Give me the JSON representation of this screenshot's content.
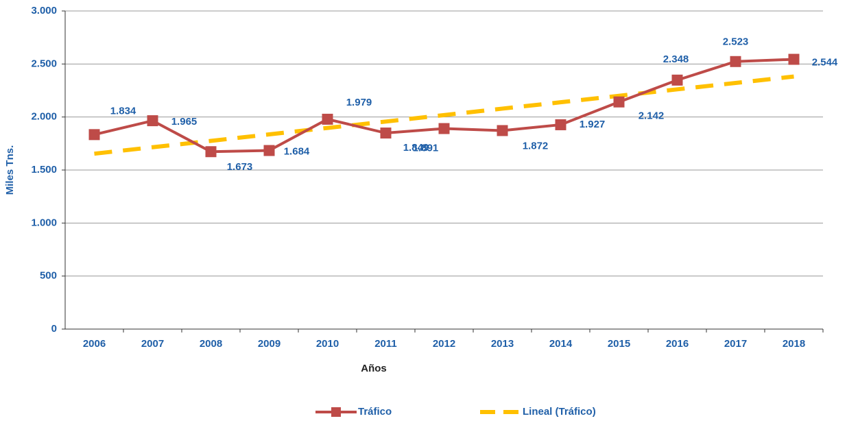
{
  "chart_data": {
    "type": "line",
    "x_label": "Años",
    "y_label": "Miles Tns.",
    "categories": [
      "2006",
      "2007",
      "2008",
      "2009",
      "2010",
      "2011",
      "2012",
      "2013",
      "2014",
      "2015",
      "2016",
      "2017",
      "2018"
    ],
    "series": [
      {
        "name": "Tráfico",
        "color": "#be4b48",
        "values": [
          1834,
          1965,
          1673,
          1684,
          1979,
          1849,
          1891,
          1872,
          1927,
          2142,
          2348,
          2523,
          2544
        ],
        "value_labels": [
          "1.834",
          "1.965",
          "1.673",
          "1.684",
          "1.979",
          "1.849",
          "1.891",
          "1.872",
          "1.927",
          "2.142",
          "2.348",
          "2.523",
          "2.544"
        ]
      },
      {
        "name": "Lineal (Tráfico)",
        "color": "#ffc000",
        "dashed": true,
        "values": [
          1654,
          1715,
          1775,
          1836,
          1897,
          1957,
          2018,
          2079,
          2139,
          2200,
          2261,
          2321,
          2382
        ]
      }
    ],
    "ylim": [
      0,
      3000
    ],
    "yticks": [
      0,
      500,
      {
        "value": 1000,
        "label": "1.000"
      },
      {
        "value": 1500,
        "label": "1.500"
      },
      {
        "value": 2000,
        "label": "2.000"
      },
      {
        "value": 2500,
        "label": "2.500"
      },
      {
        "value": 3000,
        "label": "3.000"
      }
    ],
    "grid": true,
    "legend": "bottom"
  }
}
